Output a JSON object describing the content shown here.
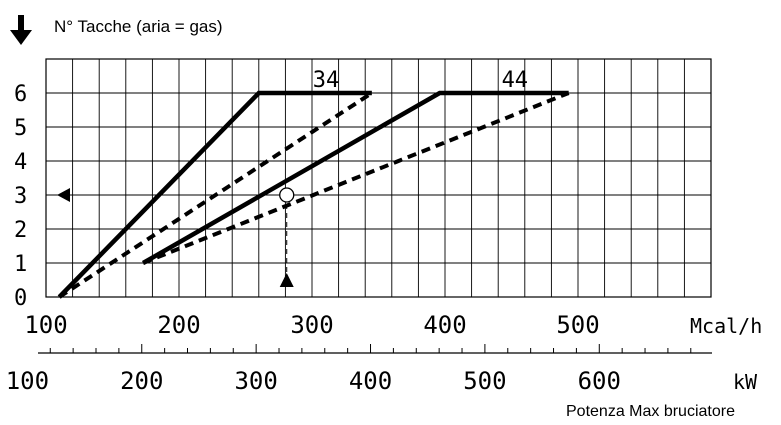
{
  "chart_data": {
    "type": "line",
    "title": "N° Tacche (aria = gas)",
    "xlabel": "Mcal/h",
    "x2label": "kW",
    "footer": "Potenza Max bruciatore",
    "xlim": [
      100,
      600
    ],
    "ylim": [
      0,
      7
    ],
    "grid": true,
    "y_ticks": [
      "0",
      "1",
      "2",
      "3",
      "4",
      "5",
      "6"
    ],
    "x_ticks": [
      "100",
      "200",
      "300",
      "400",
      "500"
    ],
    "x2_ticks": [
      "100",
      "200",
      "300",
      "400",
      "500",
      "600"
    ],
    "series": [
      {
        "name": "34",
        "style": "solid",
        "x": [
          110,
          260,
          345
        ],
        "y": [
          0,
          6,
          6
        ]
      },
      {
        "name": "",
        "style": "dashed",
        "x": [
          110,
          345
        ],
        "y": [
          0,
          6
        ]
      },
      {
        "name": "44",
        "style": "solid",
        "x": [
          173,
          396,
          493
        ],
        "y": [
          1,
          6,
          6
        ]
      },
      {
        "name": "",
        "style": "dashed",
        "x": [
          173,
          493
        ],
        "y": [
          1,
          6
        ]
      }
    ],
    "example": {
      "x": 281,
      "y": 3
    },
    "colors": {
      "line": "#000000",
      "grid": "#000000",
      "background": "#ffffff"
    }
  }
}
